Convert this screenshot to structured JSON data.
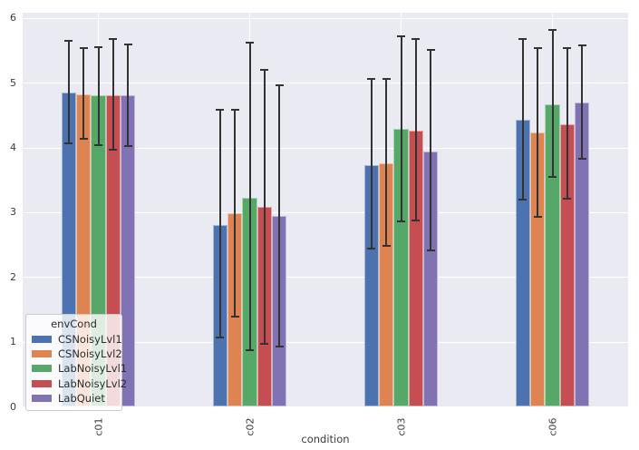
{
  "chart_data": {
    "type": "bar",
    "title": "",
    "xlabel": "condition",
    "ylabel": "",
    "categories": [
      "c01",
      "c02",
      "c03",
      "c06"
    ],
    "yticks": [
      0,
      1,
      2,
      3,
      4,
      5,
      6
    ],
    "ylim": [
      0,
      6.09
    ],
    "grid": true,
    "legend_title": "envCond",
    "legend_position": "lower-left",
    "plot_background": "#eaeaf2",
    "grid_color": "#ffffff",
    "errorbar_color": "#333333",
    "tick_color": "#3b3b3b",
    "series": [
      {
        "name": "CSNoisyLvl1",
        "color": "#4c72b0",
        "values": [
          4.86,
          2.81,
          3.73,
          4.44
        ],
        "err_low": [
          4.07,
          1.07,
          2.45,
          3.2
        ],
        "err_high": [
          5.65,
          4.59,
          5.06,
          5.68
        ]
      },
      {
        "name": "CSNoisyLvl2",
        "color": "#dd8452",
        "values": [
          4.83,
          2.99,
          3.77,
          4.24
        ],
        "err_low": [
          4.14,
          1.4,
          2.49,
          2.94
        ],
        "err_high": [
          5.54,
          4.59,
          5.07,
          5.55
        ]
      },
      {
        "name": "LabNoisyLvl1",
        "color": "#55a868",
        "values": [
          4.81,
          3.23,
          4.3,
          4.68
        ],
        "err_low": [
          4.05,
          0.87,
          2.87,
          3.56
        ],
        "err_high": [
          5.56,
          5.63,
          5.72,
          5.82
        ]
      },
      {
        "name": "LabNoisyLvl2",
        "color": "#c44e52",
        "values": [
          4.82,
          3.09,
          4.27,
          4.37
        ],
        "err_low": [
          3.98,
          0.97,
          2.88,
          3.21
        ],
        "err_high": [
          5.68,
          5.21,
          5.69,
          5.55
        ]
      },
      {
        "name": "LabQuiet",
        "color": "#8172b3",
        "values": [
          4.82,
          2.95,
          3.95,
          4.7
        ],
        "err_low": [
          4.03,
          0.93,
          2.42,
          3.83
        ],
        "err_high": [
          5.6,
          4.97,
          5.51,
          5.59
        ]
      }
    ]
  }
}
